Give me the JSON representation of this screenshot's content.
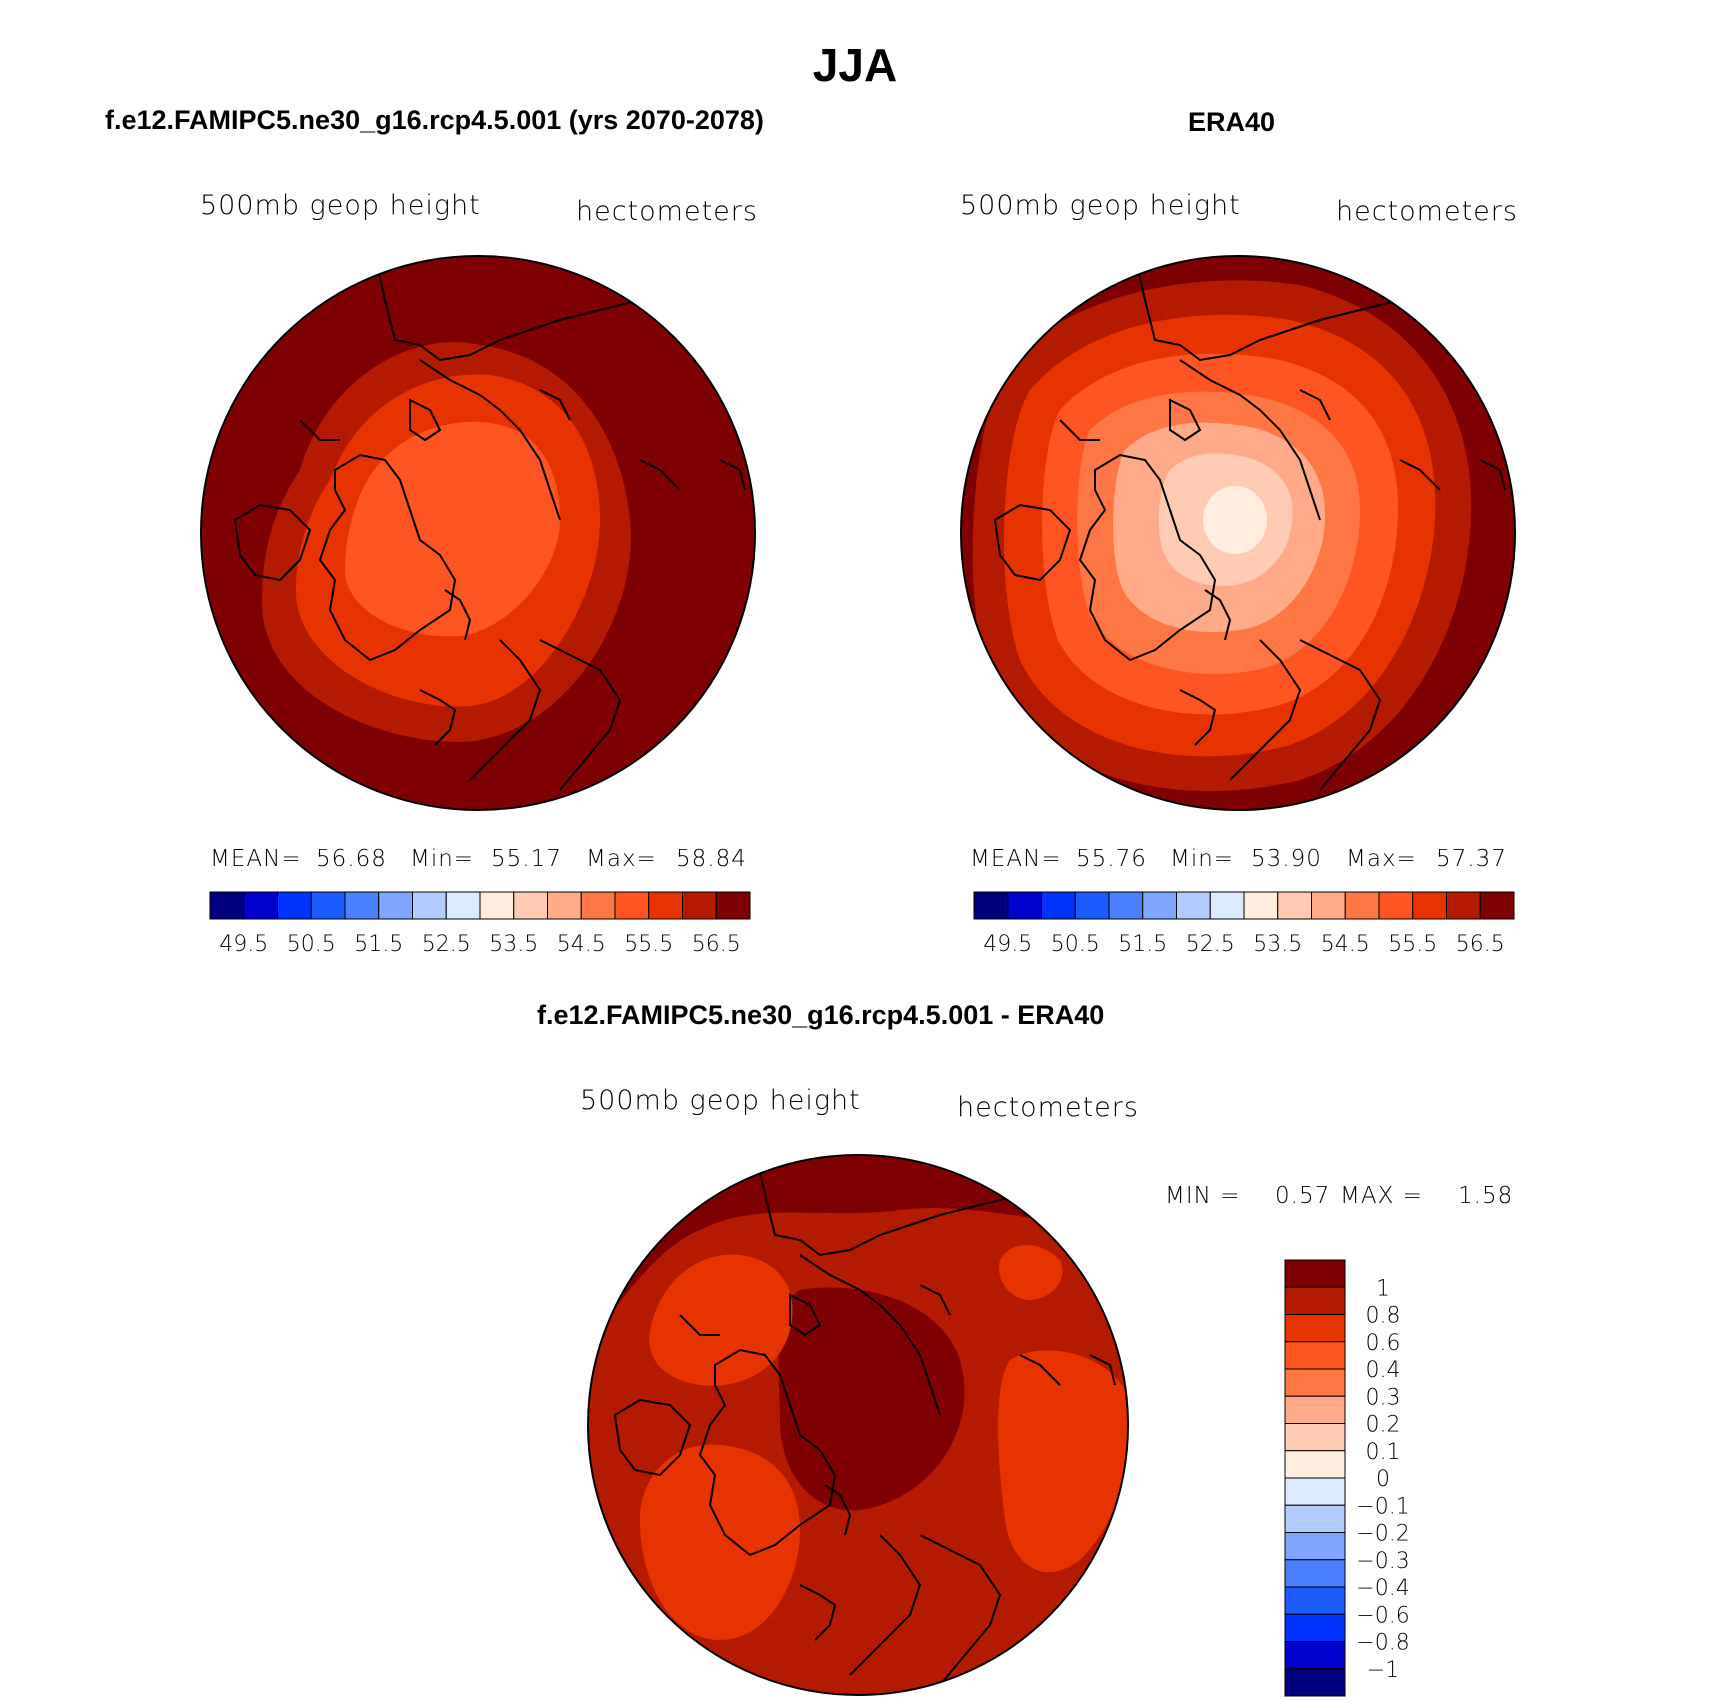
{
  "figure": {
    "season_title": "JJA",
    "colors": {
      "levels": [
        "#00007f",
        "#0000cc",
        "#0033ff",
        "#1a5cff",
        "#4a7fff",
        "#7fa6ff",
        "#b2ccff",
        "#dbeaff",
        "#ffeedd",
        "#ffccb3",
        "#ffaa88",
        "#ff7744",
        "#ff5522",
        "#e63300",
        "#b31a00",
        "#7f0000"
      ],
      "diff_levels": [
        "#7f0000",
        "#b31a00",
        "#e63300",
        "#ff5522",
        "#ff7744",
        "#ffaa88",
        "#ffccb3",
        "#ffeedd",
        "#dbeaff",
        "#b2ccff",
        "#7fa6ff",
        "#4a7fff",
        "#1a5cff",
        "#0033ff",
        "#0000cc",
        "#00007f"
      ]
    }
  },
  "panels": [
    {
      "title": "f.e12.FAMIPC5.ne30_g16.rcp4.5.001 (yrs 2070-2078)",
      "variable": "500mb  geop  height",
      "units": "hectometers",
      "stats": {
        "mean_label": "MEAN=",
        "mean": "56.68",
        "min_label": "Min=",
        "min": "55.17",
        "max_label": "Max=",
        "max": "58.84"
      },
      "colorbar_ticks": [
        "49.5",
        "50.5",
        "51.5",
        "52.5",
        "53.5",
        "54.5",
        "55.5",
        "56.5"
      ]
    },
    {
      "title": "ERA40",
      "variable": "500mb  geop  height",
      "units": "hectometers",
      "stats": {
        "mean_label": "MEAN=",
        "mean": "55.76",
        "min_label": "Min=",
        "min": "53.90",
        "max_label": "Max=",
        "max": "57.37"
      },
      "colorbar_ticks": [
        "49.5",
        "50.5",
        "51.5",
        "52.5",
        "53.5",
        "54.5",
        "55.5",
        "56.5"
      ]
    },
    {
      "title": "f.e12.FAMIPC5.ne30_g16.rcp4.5.001 - ERA40",
      "variable": "500mb  geop  height",
      "units": "hectometers",
      "stats": {
        "min_label": "MIN =",
        "min": "0.57",
        "max_label": "MAX =",
        "max": "1.58"
      },
      "colorbar_ticks": [
        "1",
        "0.8",
        "0.6",
        "0.4",
        "0.3",
        "0.2",
        "0.1",
        "0",
        "−0.1",
        "−0.2",
        "−0.3",
        "−0.4",
        "−0.6",
        "−0.8",
        "−1"
      ]
    }
  ]
}
